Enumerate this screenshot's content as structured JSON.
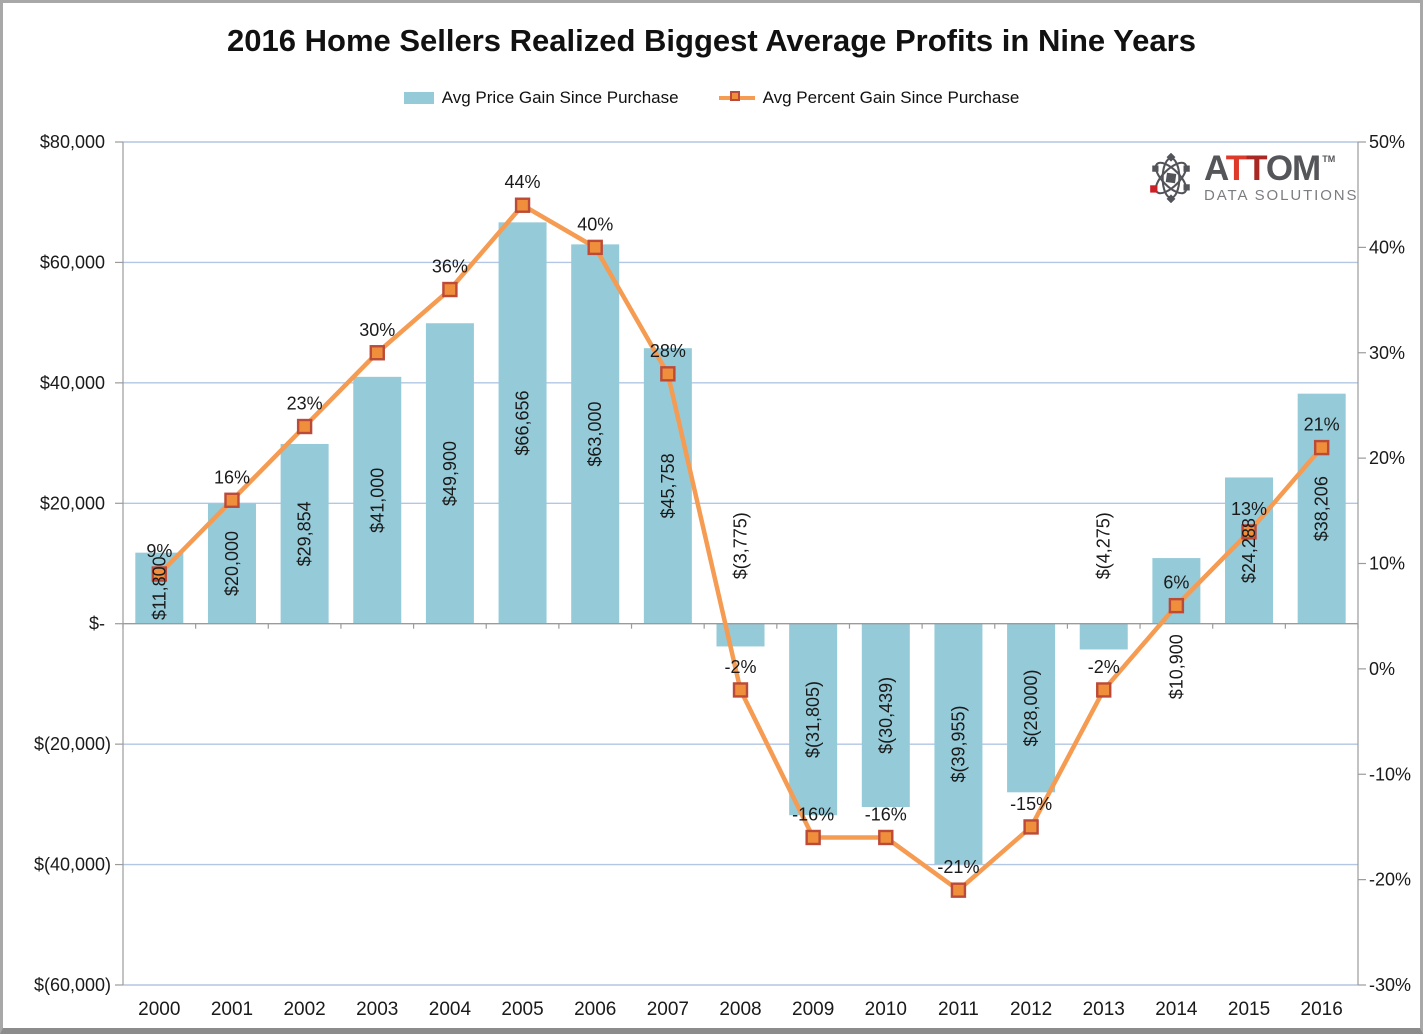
{
  "title": "2016 Home Sellers Realized Biggest Average Profits in Nine Years",
  "legend": [
    {
      "label": "Avg Price Gain Since Purchase",
      "swatch": "bar"
    },
    {
      "label": "Avg Percent Gain Since Purchase",
      "swatch": "line-marker"
    }
  ],
  "logo": {
    "brand_a": "A",
    "brand_t1": "T",
    "brand_t2": "T",
    "brand_om": "OM",
    "trademark": "TM",
    "subtitle": "DATA SOLUTIONS",
    "colors": {
      "gray": "#55565A",
      "red_bright": "#DE3A2B",
      "red_dark": "#A92824",
      "subtitle_gray": "#7C7D80",
      "icon_gray": "#53545A",
      "icon_red": "#CB2026"
    }
  },
  "chart_data": {
    "type": "combo-bar-line",
    "title": "2016 Home Sellers Realized Biggest Average Profits in Nine Years",
    "categories": [
      "2000",
      "2001",
      "2002",
      "2003",
      "2004",
      "2005",
      "2006",
      "2007",
      "2008",
      "2009",
      "2010",
      "2011",
      "2012",
      "2013",
      "2014",
      "2015",
      "2016"
    ],
    "series": [
      {
        "name": "Avg Price Gain Since Purchase",
        "type": "bar",
        "axis": "left",
        "values": [
          11800,
          20000,
          29854,
          41000,
          49900,
          66656,
          63000,
          45758,
          -3775,
          -31805,
          -30439,
          -39955,
          -28000,
          -4275,
          10900,
          24288,
          38206
        ],
        "labels": [
          "$11,800",
          "$20,000",
          "$29,854",
          "$41,000",
          "$49,900",
          "$66,656",
          "$63,000",
          "$45,758",
          "$(3,775)",
          "$(31,805)",
          "$(30,439)",
          "$(39,955)",
          "$(28,000)",
          "$(4,275)",
          "$10,900",
          "$24,288",
          "$38,206"
        ]
      },
      {
        "name": "Avg Percent Gain Since Purchase",
        "type": "line",
        "axis": "right",
        "values": [
          9,
          16,
          23,
          30,
          36,
          44,
          40,
          28,
          -2,
          -16,
          -16,
          -21,
          -15,
          -2,
          6,
          13,
          21
        ],
        "labels": [
          "9%",
          "16%",
          "23%",
          "30%",
          "36%",
          "44%",
          "40%",
          "28%",
          "-2%",
          "-16%",
          "-16%",
          "-21%",
          "-15%",
          "-2%",
          "6%",
          "13%",
          "21%"
        ]
      }
    ],
    "left_axis": {
      "range": [
        -60000,
        80000
      ],
      "ticks": [
        {
          "v": 80000,
          "label": "$80,000"
        },
        {
          "v": 60000,
          "label": "$60,000"
        },
        {
          "v": 40000,
          "label": "$40,000"
        },
        {
          "v": 20000,
          "label": "$20,000"
        },
        {
          "v": 0,
          "label": "$-"
        },
        {
          "v": -20000,
          "label": "$(20,000)"
        },
        {
          "v": -40000,
          "label": "$(40,000)"
        },
        {
          "v": -60000,
          "label": "$(60,000)"
        }
      ]
    },
    "right_axis": {
      "range": [
        -30,
        50
      ],
      "ticks": [
        {
          "v": 50,
          "label": "50%"
        },
        {
          "v": 40,
          "label": "40%"
        },
        {
          "v": 30,
          "label": "30%"
        },
        {
          "v": 20,
          "label": "20%"
        },
        {
          "v": 10,
          "label": "10%"
        },
        {
          "v": 0,
          "label": "0%"
        },
        {
          "v": -10,
          "label": "-10%"
        },
        {
          "v": -20,
          "label": "-20%"
        },
        {
          "v": -30,
          "label": "-30%"
        }
      ]
    },
    "grid": true,
    "legend_position": "top",
    "colors": {
      "bar": "#95CAD8",
      "line": "#F59B52",
      "marker_fill": "#EF8E3B",
      "marker_border": "#BC4A38",
      "gridline": "#B3C6E4",
      "axis": "#9B9B9B",
      "text": "#1A1A1A"
    }
  }
}
